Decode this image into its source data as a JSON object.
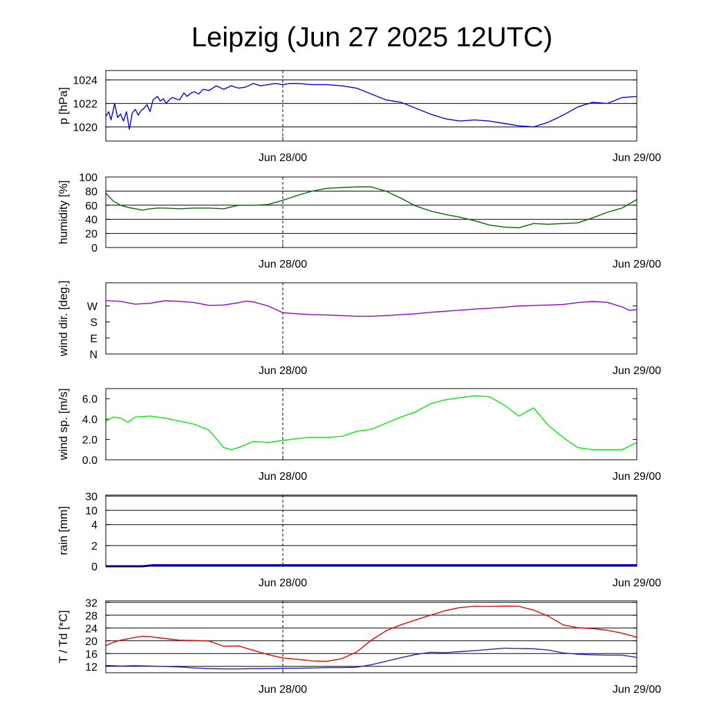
{
  "title": "Leipzig (Jun 27 2025 12UTC)",
  "x_axis": {
    "start": "Jun 27 12UTC",
    "end": "Jun 29 00UTC",
    "tick_labels": [
      "Jun 28/00",
      "Jun 29/00"
    ],
    "tick_hours": [
      12,
      36
    ],
    "marker_hour": 12,
    "total_hours": 36
  },
  "chart_data": [
    {
      "type": "line",
      "ylabel": "p [hPa]",
      "ylim": [
        1018.8,
        1024.8
      ],
      "yticks": [
        1020,
        1022,
        1024
      ],
      "ytick_labels": [
        "1020",
        "1022",
        "1024"
      ],
      "grid": true,
      "series": [
        {
          "color": "#0000ee",
          "x": [
            0,
            0.2,
            0.35,
            0.5,
            0.6,
            0.8,
            1.0,
            1.2,
            1.4,
            1.6,
            1.8,
            2.0,
            2.2,
            2.4,
            2.6,
            2.8,
            3.0,
            3.2,
            3.5,
            3.7,
            3.9,
            4.1,
            4.3,
            4.5,
            5.0,
            5.3,
            5.5,
            5.8,
            6.0,
            6.3,
            6.6,
            7.0,
            7.5,
            8.0,
            8.5,
            9.0,
            9.5,
            10.0,
            10.5,
            11.0,
            11.5,
            12.0,
            12.5,
            13,
            14,
            15,
            16,
            17,
            18,
            19,
            20,
            21,
            22,
            23,
            24,
            25,
            26,
            27,
            28,
            29,
            30,
            31,
            32,
            33,
            34,
            35,
            36
          ],
          "y": [
            1020.9,
            1021.3,
            1020.6,
            1021.4,
            1022.0,
            1020.8,
            1021.1,
            1020.5,
            1021.3,
            1019.8,
            1021.2,
            1021.5,
            1021.0,
            1021.4,
            1021.6,
            1021.9,
            1021.3,
            1022.3,
            1022.6,
            1022.2,
            1022.4,
            1022.0,
            1022.3,
            1022.5,
            1022.3,
            1022.9,
            1022.6,
            1022.9,
            1023.0,
            1022.8,
            1023.2,
            1023.1,
            1023.5,
            1023.2,
            1023.5,
            1023.3,
            1023.4,
            1023.7,
            1023.5,
            1023.6,
            1023.7,
            1023.6,
            1023.7,
            1023.7,
            1023.6,
            1023.6,
            1023.5,
            1023.3,
            1022.8,
            1022.3,
            1022.1,
            1021.6,
            1021.1,
            1020.7,
            1020.5,
            1020.6,
            1020.5,
            1020.3,
            1020.1,
            1020.0,
            1020.4,
            1021.0,
            1021.7,
            1022.1,
            1022.0,
            1022.5,
            1022.6
          ]
        }
      ]
    },
    {
      "type": "line",
      "ylabel": "humidity [%]",
      "ylim": [
        0,
        100
      ],
      "yticks": [
        0,
        20,
        40,
        60,
        80,
        100
      ],
      "ytick_labels": [
        "0",
        "20",
        "40",
        "60",
        "80",
        "100"
      ],
      "grid": true,
      "series": [
        {
          "color": "#006400",
          "x": [
            0,
            0.5,
            1,
            1.5,
            2,
            2.5,
            3,
            3.5,
            4,
            5,
            6,
            7,
            8,
            9,
            10,
            11,
            12,
            13,
            14,
            15,
            16,
            17,
            18,
            19,
            20,
            21,
            22,
            23,
            24,
            25,
            26,
            27,
            28,
            29,
            30,
            31,
            32,
            33,
            34,
            35,
            36
          ],
          "y": [
            77,
            66,
            60,
            57,
            55,
            53,
            55,
            56,
            56,
            55,
            56,
            56,
            55,
            60,
            60,
            61,
            67,
            74,
            80,
            84,
            85,
            86,
            86,
            80,
            70,
            59,
            52,
            47,
            43,
            38,
            32,
            29,
            28,
            34,
            33,
            34,
            35,
            42,
            50,
            56,
            68
          ]
        }
      ]
    },
    {
      "type": "line",
      "ylabel": "wind dir. [deg.]",
      "ylim": [
        0,
        400
      ],
      "yticks": [
        0,
        90,
        180,
        270
      ],
      "ytick_labels": [
        "N",
        "E",
        "S",
        "W"
      ],
      "grid": false,
      "series": [
        {
          "color": "#9400d3",
          "x": [
            0,
            1,
            2,
            3,
            4,
            5,
            6,
            7,
            8,
            9,
            9.5,
            10,
            11,
            12,
            13,
            14,
            15,
            16,
            17,
            18,
            19,
            20,
            21,
            22,
            23,
            24,
            25,
            26,
            27,
            28,
            29,
            30,
            31,
            32,
            33,
            34,
            35,
            35.5,
            36
          ],
          "y": [
            300,
            296,
            280,
            285,
            299,
            296,
            289,
            273,
            275,
            288,
            297,
            293,
            270,
            232,
            226,
            221,
            219,
            216,
            212,
            212,
            216,
            221,
            226,
            234,
            240,
            246,
            252,
            257,
            263,
            270,
            273,
            275,
            278,
            289,
            295,
            290,
            265,
            245,
            250
          ]
        }
      ]
    },
    {
      "type": "line",
      "ylabel": "wind sp. [m/s]",
      "ylim": [
        0,
        7
      ],
      "yticks": [
        0,
        2,
        4,
        6
      ],
      "ytick_labels": [
        "0.0",
        "2.0",
        "4.0",
        "6.0"
      ],
      "grid": false,
      "series": [
        {
          "color": "#00ee00",
          "x": [
            0,
            0.5,
            1,
            1.5,
            2,
            3,
            4,
            5,
            6,
            7,
            8,
            8.5,
            9,
            10,
            11,
            12,
            13,
            14,
            15,
            16,
            17,
            18,
            19,
            20,
            21,
            22,
            23,
            24,
            25,
            26,
            27,
            28,
            29,
            30,
            31,
            32,
            33,
            34,
            35,
            36
          ],
          "y": [
            3.8,
            4.2,
            4.1,
            3.7,
            4.2,
            4.3,
            4.1,
            3.8,
            3.5,
            2.9,
            1.2,
            1.0,
            1.2,
            1.8,
            1.7,
            1.9,
            2.1,
            2.2,
            2.2,
            2.3,
            2.8,
            3.0,
            3.6,
            4.2,
            4.7,
            5.5,
            5.9,
            6.1,
            6.3,
            6.2,
            5.4,
            4.3,
            5.1,
            3.4,
            2.2,
            1.2,
            1.0,
            1.0,
            1.0,
            1.7
          ]
        }
      ]
    },
    {
      "type": "area",
      "ylabel": "rain [mm]",
      "ylim": [
        0,
        40
      ],
      "yticks": [
        0,
        2,
        4,
        10,
        30
      ],
      "ytick_labels": [
        "0",
        "2",
        "4",
        "10",
        "30"
      ],
      "grid": true,
      "series": [
        {
          "color": "#0000cc",
          "x": [
            0,
            2.5,
            3.2,
            36
          ],
          "y": [
            0,
            0,
            0.1,
            0.1
          ]
        }
      ]
    },
    {
      "type": "line",
      "ylabel": "T / Td [*C]",
      "ylim": [
        10,
        32.5
      ],
      "yticks": [
        12,
        16,
        20,
        24,
        28,
        32
      ],
      "ytick_labels": [
        "12",
        "16",
        "20",
        "24",
        "28",
        "32"
      ],
      "grid": true,
      "series": [
        {
          "color": "#ee0000",
          "x": [
            0,
            0.5,
            1,
            1.5,
            2,
            2.5,
            3,
            4,
            5,
            6,
            7,
            8,
            9,
            10,
            11,
            12,
            13,
            14,
            15,
            16,
            17,
            18,
            19,
            20,
            21,
            22,
            23,
            24,
            25,
            26,
            27,
            28,
            29,
            30,
            31,
            32,
            33,
            34,
            35,
            36
          ],
          "y": [
            18.5,
            19.5,
            20.2,
            20.6,
            21.1,
            21.4,
            21.3,
            20.7,
            20.2,
            20.1,
            19.9,
            18.3,
            18.4,
            17.0,
            15.7,
            14.6,
            14.2,
            13.7,
            13.6,
            14.4,
            16.5,
            20.2,
            23.1,
            25.0,
            26.5,
            28.0,
            29.4,
            30.4,
            30.8,
            30.7,
            30.9,
            30.8,
            29.6,
            27.7,
            25.0,
            24.1,
            23.8,
            23.3,
            22.4,
            21.1
          ]
        },
        {
          "color": "#2222cc",
          "x": [
            0,
            1,
            2,
            3,
            4,
            5,
            6,
            7,
            8,
            9,
            10,
            11,
            12,
            13,
            14,
            15,
            16,
            17,
            18,
            19,
            20,
            21,
            22,
            23,
            24,
            25,
            26,
            27,
            28,
            29,
            30,
            31,
            32,
            33,
            34,
            35,
            36
          ],
          "y": [
            12.3,
            12.1,
            12.2,
            12.1,
            12.0,
            11.8,
            11.5,
            11.3,
            11.2,
            11.2,
            11.3,
            11.3,
            11.4,
            11.4,
            11.5,
            11.6,
            11.6,
            11.7,
            12.5,
            13.6,
            14.7,
            15.7,
            16.4,
            16.3,
            16.6,
            16.9,
            17.3,
            17.7,
            17.6,
            17.5,
            17.1,
            16.2,
            15.8,
            15.6,
            15.5,
            15.5,
            14.8
          ]
        }
      ]
    }
  ]
}
